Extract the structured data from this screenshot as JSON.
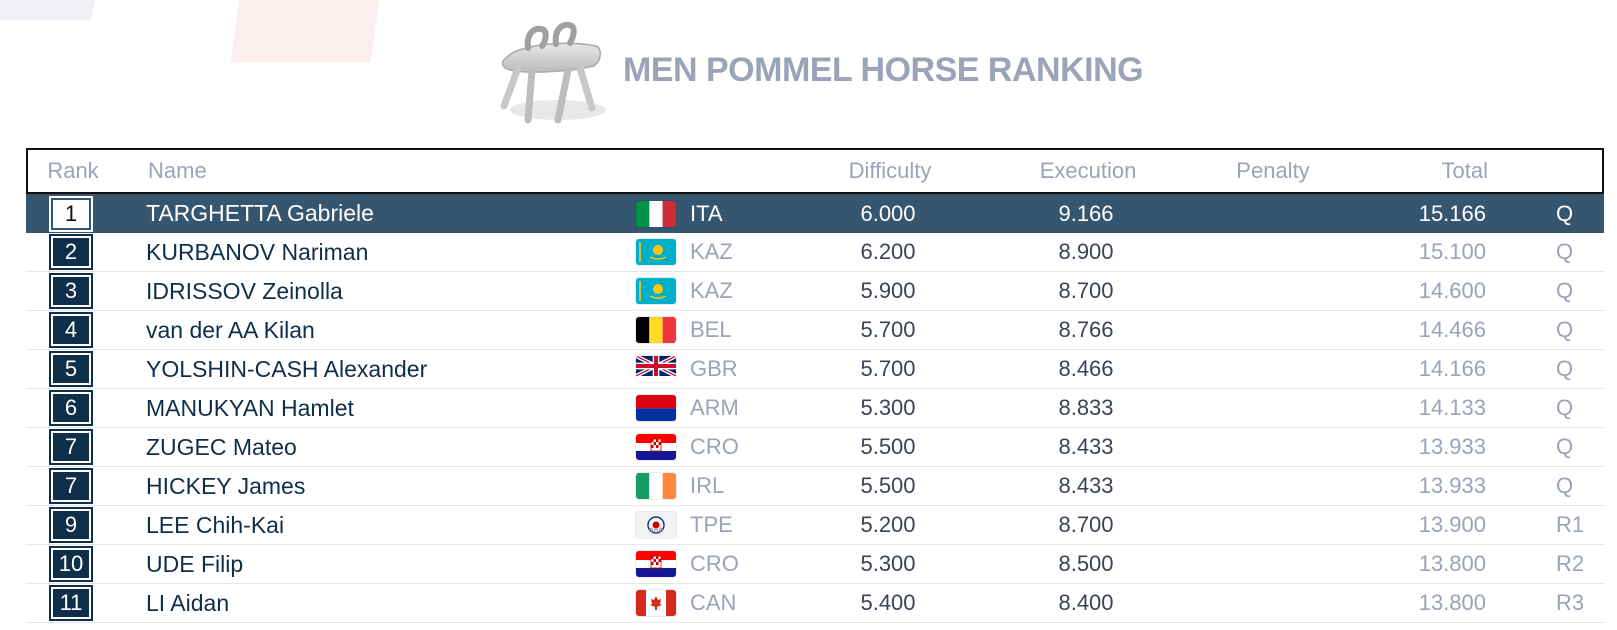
{
  "page": {
    "title": "MEN POMMEL HORSE RANKING",
    "icon": "pommel-horse-icon"
  },
  "colors": {
    "navy": "#0f2e4a",
    "highlight_row": "#36556e",
    "muted_text": "#9aa3b8",
    "title": "#9aa3b8"
  },
  "table": {
    "headers": {
      "rank": "Rank",
      "name": "Name",
      "difficulty": "Difficulty",
      "execution": "Execution",
      "penalty": "Penalty",
      "total": "Total"
    },
    "rows": [
      {
        "rank": "1",
        "name": "TARGHETTA Gabriele",
        "country": "ITA",
        "flag": "italy-flag-icon",
        "difficulty": "6.000",
        "execution": "9.166",
        "penalty": "",
        "total": "15.166",
        "qual": "Q",
        "highlight": true
      },
      {
        "rank": "2",
        "name": "KURBANOV Nariman",
        "country": "KAZ",
        "flag": "kazakhstan-flag-icon",
        "difficulty": "6.200",
        "execution": "8.900",
        "penalty": "",
        "total": "15.100",
        "qual": "Q"
      },
      {
        "rank": "3",
        "name": "IDRISSOV Zeinolla",
        "country": "KAZ",
        "flag": "kazakhstan-flag-icon",
        "difficulty": "5.900",
        "execution": "8.700",
        "penalty": "",
        "total": "14.600",
        "qual": "Q"
      },
      {
        "rank": "4",
        "name": "van der AA Kilan",
        "country": "BEL",
        "flag": "belgium-flag-icon",
        "difficulty": "5.700",
        "execution": "8.766",
        "penalty": "",
        "total": "14.466",
        "qual": "Q"
      },
      {
        "rank": "5",
        "name": "YOLSHIN-CASH Alexander",
        "country": "GBR",
        "flag": "uk-flag-icon",
        "difficulty": "5.700",
        "execution": "8.466",
        "penalty": "",
        "total": "14.166",
        "qual": "Q"
      },
      {
        "rank": "6",
        "name": "MANUKYAN Hamlet",
        "country": "ARM",
        "flag": "armenia-flag-icon",
        "difficulty": "5.300",
        "execution": "8.833",
        "penalty": "",
        "total": "14.133",
        "qual": "Q"
      },
      {
        "rank": "7",
        "name": "ZUGEC Mateo",
        "country": "CRO",
        "flag": "croatia-flag-icon",
        "difficulty": "5.500",
        "execution": "8.433",
        "penalty": "",
        "total": "13.933",
        "qual": "Q"
      },
      {
        "rank": "7",
        "name": "HICKEY James",
        "country": "IRL",
        "flag": "ireland-flag-icon",
        "difficulty": "5.500",
        "execution": "8.433",
        "penalty": "",
        "total": "13.933",
        "qual": "Q"
      },
      {
        "rank": "9",
        "name": "LEE Chih-Kai",
        "country": "TPE",
        "flag": "chinese-taipei-flag-icon",
        "difficulty": "5.200",
        "execution": "8.700",
        "penalty": "",
        "total": "13.900",
        "qual": "R1"
      },
      {
        "rank": "10",
        "name": "UDE Filip",
        "country": "CRO",
        "flag": "croatia-flag-icon",
        "difficulty": "5.300",
        "execution": "8.500",
        "penalty": "",
        "total": "13.800",
        "qual": "R2"
      },
      {
        "rank": "11",
        "name": "LI Aidan",
        "country": "CAN",
        "flag": "canada-flag-icon",
        "difficulty": "5.400",
        "execution": "8.400",
        "penalty": "",
        "total": "13.800",
        "qual": "R3"
      }
    ]
  }
}
